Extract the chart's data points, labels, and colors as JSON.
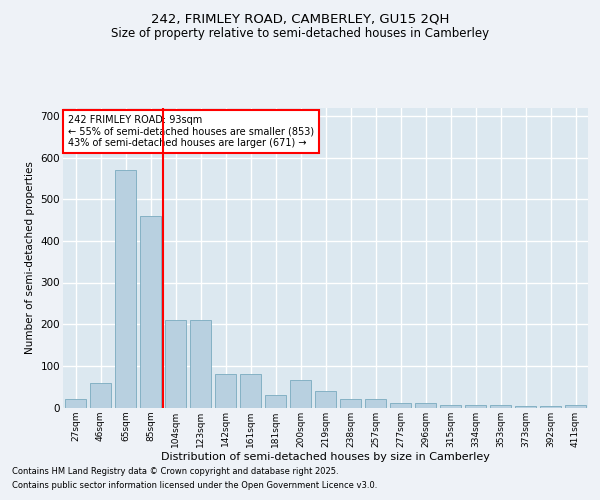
{
  "title1": "242, FRIMLEY ROAD, CAMBERLEY, GU15 2QH",
  "title2": "Size of property relative to semi-detached houses in Camberley",
  "xlabel": "Distribution of semi-detached houses by size in Camberley",
  "ylabel": "Number of semi-detached properties",
  "categories": [
    "27sqm",
    "46sqm",
    "65sqm",
    "85sqm",
    "104sqm",
    "123sqm",
    "142sqm",
    "161sqm",
    "181sqm",
    "200sqm",
    "219sqm",
    "238sqm",
    "257sqm",
    "277sqm",
    "296sqm",
    "315sqm",
    "334sqm",
    "353sqm",
    "373sqm",
    "392sqm",
    "411sqm"
  ],
  "values": [
    20,
    60,
    570,
    460,
    210,
    210,
    80,
    80,
    30,
    65,
    40,
    20,
    20,
    10,
    10,
    7,
    5,
    5,
    4,
    3,
    5
  ],
  "bar_color": "#b8d0e0",
  "bar_edge_color": "#7aaabf",
  "annotation_title": "242 FRIMLEY ROAD: 93sqm",
  "annotation_line1": "← 55% of semi-detached houses are smaller (853)",
  "annotation_line2": "43% of semi-detached houses are larger (671) →",
  "ylim": [
    0,
    720
  ],
  "yticks": [
    0,
    100,
    200,
    300,
    400,
    500,
    600,
    700
  ],
  "footnote1": "Contains HM Land Registry data © Crown copyright and database right 2025.",
  "footnote2": "Contains public sector information licensed under the Open Government Licence v3.0.",
  "bg_color": "#eef2f7",
  "plot_bg_color": "#dce8f0",
  "grid_color": "#ffffff"
}
